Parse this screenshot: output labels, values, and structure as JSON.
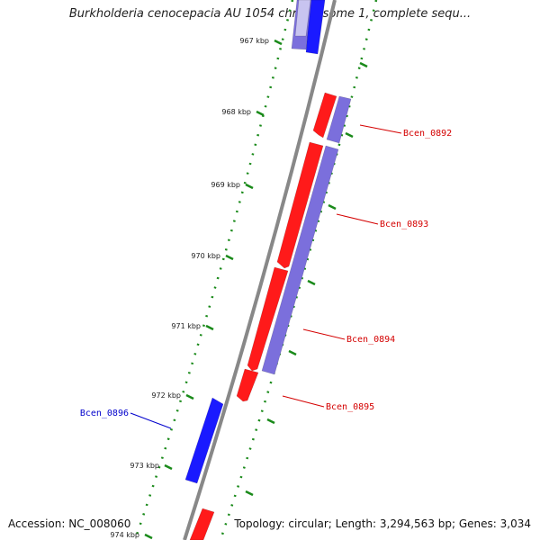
{
  "title": "Burkholderia cenocepacia AU 1054 chromosome 1, complete sequ...",
  "footer": {
    "accession_text": "Accession: NC_008060",
    "info_text": "Topology: circular; Length: 3,294,563 bp; Genes: 3,034"
  },
  "colors": {
    "backbone": "#888888",
    "tick": "#1a8a1a",
    "forward_cds": "#ff1a1a",
    "reverse_cds": "#1a1aff",
    "reverse_other": "#7b6fdc",
    "label_red": "#d40000",
    "label_blue": "#0000cc"
  },
  "ticks": [
    {
      "label": "967 kbp"
    },
    {
      "label": "968 kbp"
    },
    {
      "label": "969 kbp"
    },
    {
      "label": "970 kbp"
    },
    {
      "label": "971 kbp"
    },
    {
      "label": "972 kbp"
    },
    {
      "label": "973 kbp"
    },
    {
      "label": "974 kbp"
    }
  ],
  "gene_labels": [
    {
      "id": "Bcen_0892",
      "color": "red"
    },
    {
      "id": "Bcen_0893",
      "color": "red"
    },
    {
      "id": "Bcen_0894",
      "color": "red"
    },
    {
      "id": "Bcen_0895",
      "color": "red"
    },
    {
      "id": "Bcen_0896",
      "color": "blue"
    }
  ]
}
